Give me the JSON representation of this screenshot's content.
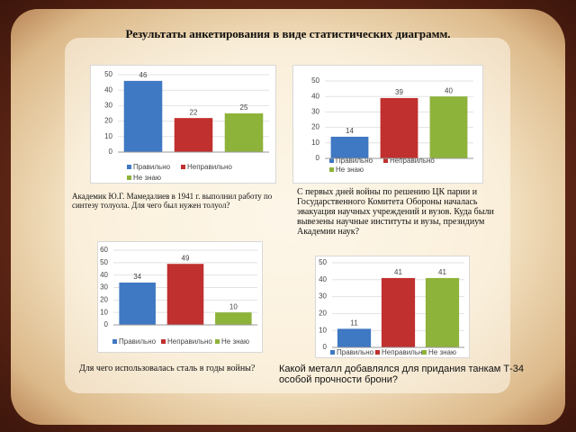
{
  "title": "Результаты анкетирования в виде статистических диаграмм.",
  "chart_data": [
    {
      "type": "bar",
      "caption": "Академик Ю.Г. Мамедалиев в 1941 г. выполнил работу по синтезу толуола. Для чего был нужен толуол?",
      "categories": [
        null
      ],
      "ylim": [
        0,
        50
      ],
      "yticks": [
        0,
        10,
        20,
        30,
        40,
        50
      ],
      "grid": true,
      "series": [
        {
          "name": "Правильно",
          "color": "#3f78c3",
          "values": [
            46
          ]
        },
        {
          "name": "Неправильно",
          "color": "#c0302e",
          "values": [
            22
          ]
        },
        {
          "name": "Не знаю",
          "color": "#8db33a",
          "values": [
            25
          ]
        }
      ]
    },
    {
      "type": "bar",
      "caption": "С первых дней войны по решению ЦК парии и Государственного Комитета Обороны началась эвакуация научных учреждений и вузов. Куда были вывезены научные институты и вузы, президиум Академии наук?",
      "categories": [
        null
      ],
      "ylim": [
        0,
        50
      ],
      "yticks": [
        0,
        10,
        20,
        30,
        40,
        50
      ],
      "grid": true,
      "series": [
        {
          "name": "Правильно",
          "color": "#3f78c3",
          "values": [
            14
          ]
        },
        {
          "name": "Неправильно",
          "color": "#c0302e",
          "values": [
            39
          ]
        },
        {
          "name": "Не знаю",
          "color": "#8db33a",
          "values": [
            40
          ]
        }
      ]
    },
    {
      "type": "bar",
      "caption": "Для чего использовалась сталь в годы войны?",
      "categories": [
        null
      ],
      "ylim": [
        0,
        60
      ],
      "yticks": [
        0,
        10,
        20,
        30,
        40,
        50,
        60
      ],
      "grid": true,
      "series": [
        {
          "name": "Правильно",
          "color": "#3f78c3",
          "values": [
            34
          ]
        },
        {
          "name": "Неправильно",
          "color": "#c0302e",
          "values": [
            49
          ]
        },
        {
          "name": "Не знаю",
          "color": "#8db33a",
          "values": [
            10
          ]
        }
      ]
    },
    {
      "type": "bar",
      "caption": "Какой металл добавлялся для придания танкам Т-34 особой прочности брони?",
      "categories": [
        null
      ],
      "ylim": [
        0,
        50
      ],
      "yticks": [
        0,
        10,
        20,
        30,
        40,
        50
      ],
      "grid": true,
      "series": [
        {
          "name": "Правильно",
          "color": "#3f78c3",
          "values": [
            11
          ]
        },
        {
          "name": "Неправильно",
          "color": "#c0302e",
          "values": [
            41
          ]
        },
        {
          "name": "Не знаю",
          "color": "#8db33a",
          "values": [
            41
          ]
        }
      ]
    }
  ]
}
